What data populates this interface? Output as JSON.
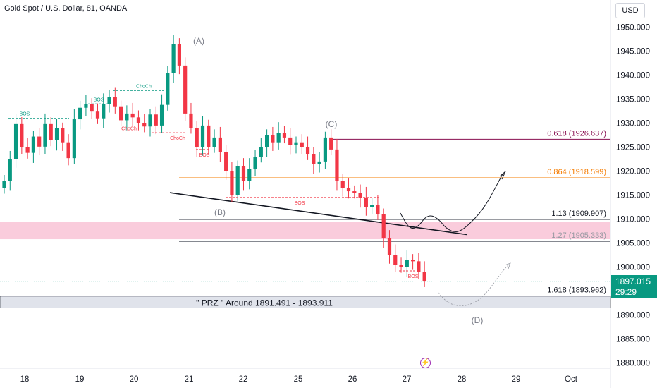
{
  "header": {
    "symbol_title": "Gold Spot / U.S. Dollar, 81, OANDA"
  },
  "currency_button": "USD",
  "last_price": {
    "value": "1897.015",
    "countdown": "29:29",
    "color": "#089981"
  },
  "event_icon": "lightning-icon",
  "colors": {
    "up": "#089981",
    "down": "#f23645",
    "candle_body": "#131722",
    "fib_0618": "#880e4f",
    "fib_0864": "#f57c00",
    "fib_neutral": "#131722",
    "zone_fill": "#f8bbd0",
    "prz_fill": "#e0e3eb",
    "wave_label": "#787b86",
    "bos_green": "#089981",
    "bos_red": "#f23645"
  },
  "chart_data": {
    "type": "candlestick",
    "y_axis": {
      "min": 1880,
      "max": 1950,
      "ticks": [
        "1950.000",
        "1945.000",
        "1940.000",
        "1935.000",
        "1930.000",
        "1925.000",
        "1920.000",
        "1915.000",
        "1910.000",
        "1905.000",
        "1900.000",
        "1895.000",
        "1890.000",
        "1885.000",
        "1880.000"
      ]
    },
    "x_axis": {
      "ticks": [
        "18",
        "19",
        "20",
        "21",
        "22",
        "25",
        "26",
        "27",
        "28",
        "29",
        "Oct"
      ]
    },
    "price_series": [
      1918.0,
      1922.5,
      1929.8,
      1925.0,
      1923.8,
      1927.2,
      1925.1,
      1929.8,
      1926.4,
      1928.9,
      1926.0,
      1922.7,
      1930.8,
      1933.2,
      1934.0,
      1932.4,
      1931.0,
      1934.0,
      1935.4,
      1933.5,
      1930.6,
      1932.0,
      1931.2,
      1930.0,
      1929.3,
      1931.8,
      1929.5,
      1933.8,
      1940.5,
      1946.5,
      1942.0,
      1932.0,
      1929.0,
      1925.0,
      1929.5,
      1925.0,
      1927.0,
      1924.0,
      1920.0,
      1915.0,
      1921.0,
      1918.0,
      1920.5,
      1923.0,
      1925.0,
      1927.5,
      1926.0,
      1928.0,
      1927.0,
      1925.5,
      1926.0,
      1925.0,
      1923.5,
      1921.5,
      1922.0,
      1927.0,
      1924.5,
      1918.0,
      1916.5,
      1915.8,
      1915.5,
      1914.5,
      1912.5,
      1913.0,
      1911.0,
      1906.0,
      1902.5,
      1900.5,
      1900.0,
      1901.5,
      1901.2,
      1899.0,
      1897.015
    ],
    "wave_labels": [
      "(A)",
      "(B)",
      "(C)",
      "(D)"
    ],
    "structure_labels": [
      "BOS",
      "BOS",
      "ChoCh",
      "ChoCh",
      "ChoCh",
      "BOS",
      "BOS",
      "BOS"
    ],
    "fib_levels": [
      {
        "label": "0.618 (1926.637)",
        "price": 1926.637
      },
      {
        "label": "0.864 (1918.599)",
        "price": 1918.599
      },
      {
        "label": "1.13 (1909.907)",
        "price": 1909.907
      },
      {
        "label": "1.27 (1905.333)",
        "price": 1905.333
      },
      {
        "label": "1.618 (1893.962)",
        "price": 1893.962
      }
    ],
    "zone": {
      "top": 1909.4,
      "bottom": 1905.8
    },
    "prz": {
      "label": "\" PRZ \" Around 1891.491 - 1893.911",
      "top": 1893.911,
      "bottom": 1891.491
    },
    "trendline": {
      "from": 1915.5,
      "to": 1907.5
    }
  }
}
